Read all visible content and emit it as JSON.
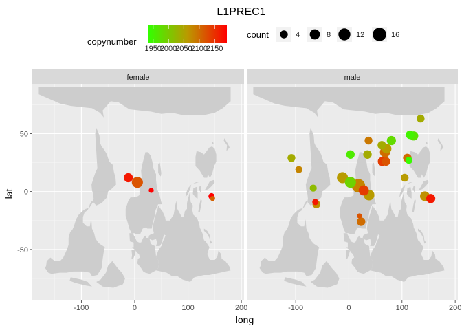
{
  "chart_data": {
    "type": "scatter",
    "title": "L1PREC1",
    "xlabel": "long",
    "ylabel": "lat",
    "xlim": [
      -192,
      205
    ],
    "ylim": [
      -94,
      93
    ],
    "x_ticks": [
      -100,
      0,
      100,
      200
    ],
    "y_ticks": [
      -50,
      0,
      50
    ],
    "x_tick_labels": [
      "-100",
      "0",
      "100",
      "200"
    ],
    "y_tick_labels": [
      "-50",
      "0",
      "50"
    ],
    "background": "world-map",
    "grid": true,
    "legend_position": "top",
    "facets": [
      "female",
      "male"
    ],
    "color_legend": {
      "title": "copynumber",
      "min": 1935,
      "max": 2190,
      "breaks": [
        1950,
        2000,
        2050,
        2100,
        2150
      ],
      "break_labels": [
        "1950",
        "2000",
        "2050",
        "2100",
        "2150"
      ],
      "low_color": "#33ff00",
      "mid_color": "#bb9900",
      "high_color": "#ff0000"
    },
    "size_legend": {
      "title": "count",
      "breaks": [
        4,
        8,
        12,
        16
      ],
      "break_labels": [
        "4",
        "8",
        "12",
        "16"
      ]
    },
    "series": [
      {
        "facet": "female",
        "points": [
          {
            "x": -12,
            "y": 12,
            "copynumber": 2170,
            "count": 6
          },
          {
            "x": 5,
            "y": 8,
            "copynumber": 2120,
            "count": 10
          },
          {
            "x": 31,
            "y": 1,
            "copynumber": 2190,
            "count": 1
          },
          {
            "x": 144,
            "y": -4,
            "copynumber": 2190,
            "count": 2
          },
          {
            "x": 146,
            "y": -6,
            "copynumber": 2110,
            "count": 1
          }
        ]
      },
      {
        "facet": "male",
        "points": [
          {
            "x": 135,
            "y": 63,
            "copynumber": 2040,
            "count": 4
          },
          {
            "x": 115,
            "y": 49,
            "copynumber": 1950,
            "count": 5
          },
          {
            "x": 122,
            "y": 48,
            "copynumber": 1970,
            "count": 6
          },
          {
            "x": 80,
            "y": 44,
            "copynumber": 1980,
            "count": 6
          },
          {
            "x": 37,
            "y": 44,
            "copynumber": 2090,
            "count": 4
          },
          {
            "x": 62,
            "y": 40,
            "copynumber": 2040,
            "count": 5
          },
          {
            "x": 71,
            "y": 37,
            "copynumber": 2060,
            "count": 7
          },
          {
            "x": 68,
            "y": 34,
            "copynumber": 2100,
            "count": 8
          },
          {
            "x": 3,
            "y": 32,
            "copynumber": 1960,
            "count": 5
          },
          {
            "x": 35,
            "y": 32,
            "copynumber": 2040,
            "count": 5
          },
          {
            "x": -108,
            "y": 29,
            "copynumber": 2040,
            "count": 4
          },
          {
            "x": 110,
            "y": 29,
            "copynumber": 2100,
            "count": 5
          },
          {
            "x": 113,
            "y": 27,
            "copynumber": 1940,
            "count": 3
          },
          {
            "x": 63,
            "y": 26,
            "copynumber": 2140,
            "count": 6
          },
          {
            "x": 70,
            "y": 26,
            "copynumber": 2120,
            "count": 5
          },
          {
            "x": -94,
            "y": 19,
            "copynumber": 2080,
            "count": 3
          },
          {
            "x": -12,
            "y": 12,
            "copynumber": 2060,
            "count": 10
          },
          {
            "x": 3,
            "y": 8,
            "copynumber": 1990,
            "count": 10
          },
          {
            "x": 18,
            "y": 5,
            "copynumber": 2080,
            "count": 16
          },
          {
            "x": 28,
            "y": 1,
            "copynumber": 2140,
            "count": 8
          },
          {
            "x": 105,
            "y": 12,
            "copynumber": 2060,
            "count": 4
          },
          {
            "x": -67,
            "y": 3,
            "copynumber": 2020,
            "count": 3
          },
          {
            "x": 38,
            "y": -3,
            "copynumber": 2060,
            "count": 9
          },
          {
            "x": 143,
            "y": -4,
            "copynumber": 2070,
            "count": 7
          },
          {
            "x": 154,
            "y": -6,
            "copynumber": 2170,
            "count": 6
          },
          {
            "x": -63,
            "y": -9,
            "copynumber": 2170,
            "count": 2
          },
          {
            "x": -61,
            "y": -11,
            "copynumber": 2070,
            "count": 4
          },
          {
            "x": 20,
            "y": -21,
            "copynumber": 2120,
            "count": 1
          },
          {
            "x": 23,
            "y": -26,
            "copynumber": 2100,
            "count": 5
          }
        ]
      }
    ]
  }
}
